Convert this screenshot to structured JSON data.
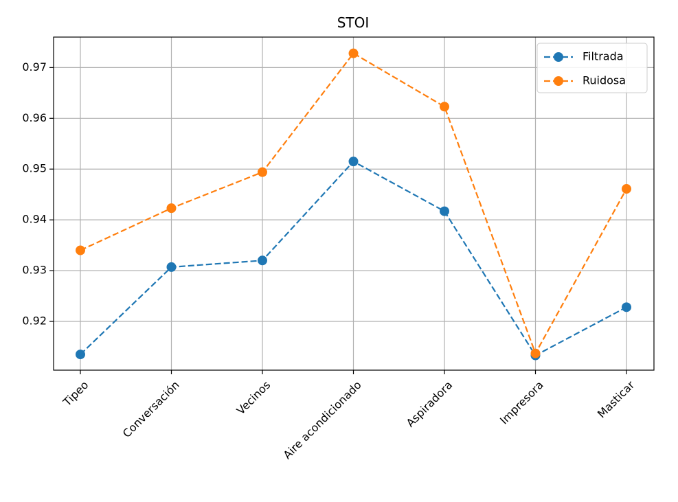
{
  "chart_data": {
    "type": "line",
    "title": "STOI",
    "xlabel": "",
    "ylabel": "",
    "categories": [
      "Tipeo",
      "Conversación",
      "Vecinos",
      "Aire acondicionado",
      "Aspiradora",
      "Impresora",
      "Masticar"
    ],
    "series": [
      {
        "name": "Filtrada",
        "color": "#1f77b4",
        "line_style": "dashed",
        "marker": "circle",
        "values": [
          0.9135,
          0.9307,
          0.932,
          0.9515,
          0.9417,
          0.9133,
          0.9228
        ]
      },
      {
        "name": "Ruidosa",
        "color": "#ff7f0e",
        "line_style": "dashed",
        "marker": "circle",
        "values": [
          0.934,
          0.9423,
          0.9494,
          0.9728,
          0.9623,
          0.9137,
          0.9461
        ]
      }
    ],
    "ylim": [
      0.9104,
      0.976
    ],
    "yticks": [
      0.92,
      0.93,
      0.94,
      0.95,
      0.96,
      0.97
    ],
    "ytick_labels": [
      "0.92",
      "0.93",
      "0.94",
      "0.95",
      "0.96",
      "0.97"
    ],
    "grid": true,
    "legend_position": "top-right",
    "xtick_rotation": 45
  }
}
